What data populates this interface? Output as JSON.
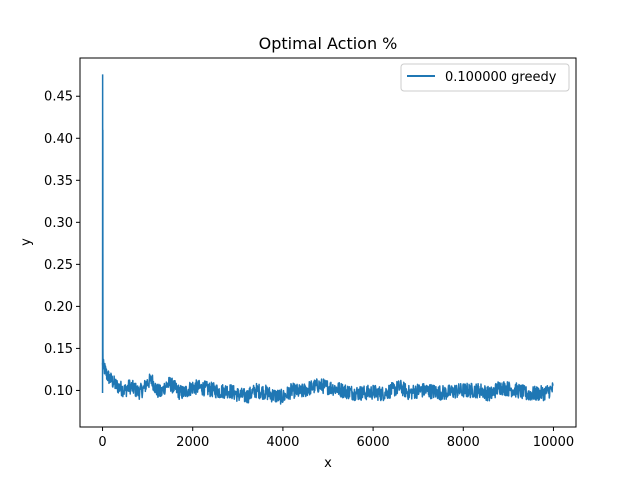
{
  "chart_data": {
    "type": "line",
    "title": "Optimal Action %",
    "xlabel": "x",
    "ylabel": "y",
    "xlim": [
      -500,
      10500
    ],
    "ylim": [
      0.0565,
      0.4955
    ],
    "xticks": [
      0,
      2000,
      4000,
      6000,
      8000,
      10000
    ],
    "xtick_labels": [
      "0",
      "2000",
      "4000",
      "6000",
      "8000",
      "10000"
    ],
    "yticks": [
      0.1,
      0.15,
      0.2,
      0.25,
      0.3,
      0.35,
      0.4,
      0.45
    ],
    "ytick_labels": [
      "0.10",
      "0.15",
      "0.20",
      "0.25",
      "0.30",
      "0.35",
      "0.40",
      "0.45"
    ],
    "grid": false,
    "legend": {
      "placement": "top-right"
    },
    "series": [
      {
        "name": "0.100000 greedy",
        "color": "#1f77b4",
        "spike": {
          "x": [
            0,
            2,
            4,
            6,
            8,
            10
          ],
          "y": [
            0.097,
            0.476,
            0.2,
            0.41,
            0.15,
            0.13
          ]
        },
        "x": [
          0,
          50,
          100,
          200,
          300,
          400,
          500,
          600,
          700,
          800,
          900,
          1000,
          1100,
          1200,
          1300,
          1400,
          1500,
          1600,
          1700,
          1800,
          1900,
          2000,
          2200,
          2400,
          2600,
          2800,
          3000,
          3200,
          3400,
          3600,
          3800,
          4000,
          4200,
          4400,
          4600,
          4800,
          5000,
          5200,
          5400,
          5600,
          5800,
          6000,
          6200,
          6400,
          6600,
          6800,
          7000,
          7200,
          7400,
          7600,
          7800,
          8000,
          8200,
          8400,
          8600,
          8800,
          9000,
          9200,
          9400,
          9600,
          9800,
          10000
        ],
        "y": [
          0.13,
          0.125,
          0.118,
          0.112,
          0.106,
          0.103,
          0.1,
          0.105,
          0.102,
          0.098,
          0.101,
          0.11,
          0.112,
          0.1,
          0.097,
          0.106,
          0.108,
          0.103,
          0.098,
          0.097,
          0.101,
          0.104,
          0.103,
          0.101,
          0.099,
          0.1,
          0.095,
          0.093,
          0.1,
          0.098,
          0.094,
          0.092,
          0.1,
          0.098,
          0.103,
          0.106,
          0.104,
          0.102,
          0.099,
          0.097,
          0.097,
          0.098,
          0.096,
          0.1,
          0.104,
          0.097,
          0.1,
          0.1,
          0.098,
          0.097,
          0.099,
          0.1,
          0.1,
          0.1,
          0.095,
          0.104,
          0.102,
          0.1,
          0.096,
          0.096,
          0.097,
          0.102
        ],
        "noise_amplitude": 0.009
      }
    ]
  }
}
